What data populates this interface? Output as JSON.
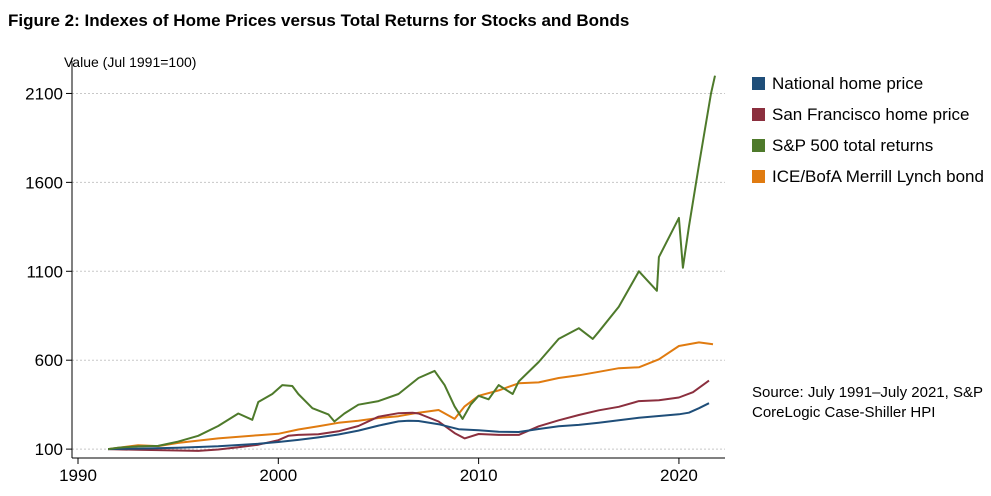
{
  "title": "Figure 2: Indexes of Home Prices versus Total Returns for Stocks and Bonds",
  "source_note": "Source: July 1991–July 2021, S&P CoreLogic Case-Shiller HPI",
  "chart_data": {
    "type": "line",
    "ylabel": "Value (Jul 1991=100)",
    "xlabel": "",
    "xlim": [
      1989.7,
      2022.3
    ],
    "ylim": [
      50,
      2260
    ],
    "xticks": [
      1990,
      2000,
      2010,
      2020
    ],
    "yticks": [
      100,
      600,
      1100,
      1600,
      2100
    ],
    "ytick_labels": [
      "100",
      "600",
      "1100",
      "1600",
      "2100"
    ],
    "grid": true,
    "legend_position": "right",
    "series": [
      {
        "name": "National home price",
        "color": "#1f4e79",
        "points": [
          [
            1991.5,
            100
          ],
          [
            1993,
            103
          ],
          [
            1995,
            108
          ],
          [
            1997,
            116
          ],
          [
            1999,
            130
          ],
          [
            2000,
            140
          ],
          [
            2001,
            152
          ],
          [
            2002,
            166
          ],
          [
            2003,
            182
          ],
          [
            2004,
            204
          ],
          [
            2005,
            232
          ],
          [
            2006,
            256
          ],
          [
            2006.5,
            260
          ],
          [
            2007,
            258
          ],
          [
            2008,
            240
          ],
          [
            2009,
            212
          ],
          [
            2010,
            206
          ],
          [
            2011,
            198
          ],
          [
            2012,
            196
          ],
          [
            2013,
            213
          ],
          [
            2014,
            228
          ],
          [
            2015,
            236
          ],
          [
            2016,
            248
          ],
          [
            2017,
            262
          ],
          [
            2018,
            276
          ],
          [
            2019,
            286
          ],
          [
            2020,
            296
          ],
          [
            2020.5,
            305
          ],
          [
            2021,
            330
          ],
          [
            2021.5,
            358
          ]
        ]
      },
      {
        "name": "San Francisco home price",
        "color": "#8b2f3e",
        "points": [
          [
            1991.5,
            100
          ],
          [
            1993,
            96
          ],
          [
            1995,
            92
          ],
          [
            1996,
            90
          ],
          [
            1997,
            98
          ],
          [
            1998,
            110
          ],
          [
            1999,
            125
          ],
          [
            2000,
            150
          ],
          [
            2000.5,
            175
          ],
          [
            2001,
            180
          ],
          [
            2002,
            183
          ],
          [
            2003,
            200
          ],
          [
            2004,
            230
          ],
          [
            2005,
            282
          ],
          [
            2006,
            302
          ],
          [
            2006.7,
            305
          ],
          [
            2007,
            300
          ],
          [
            2008,
            255
          ],
          [
            2008.8,
            190
          ],
          [
            2009.3,
            160
          ],
          [
            2010,
            185
          ],
          [
            2011,
            180
          ],
          [
            2012,
            180
          ],
          [
            2013,
            228
          ],
          [
            2014,
            262
          ],
          [
            2015,
            292
          ],
          [
            2016,
            318
          ],
          [
            2017,
            338
          ],
          [
            2018,
            370
          ],
          [
            2019,
            375
          ],
          [
            2020,
            390
          ],
          [
            2020.7,
            420
          ],
          [
            2021.5,
            485
          ]
        ]
      },
      {
        "name": "S&P 500 total returns",
        "color": "#4e7a2b",
        "points": [
          [
            1991.5,
            100
          ],
          [
            1992,
            108
          ],
          [
            1993,
            115
          ],
          [
            1994,
            118
          ],
          [
            1995,
            142
          ],
          [
            1996,
            175
          ],
          [
            1997,
            230
          ],
          [
            1998,
            300
          ],
          [
            1998.7,
            265
          ],
          [
            1999,
            365
          ],
          [
            1999.7,
            410
          ],
          [
            2000.2,
            460
          ],
          [
            2000.7,
            455
          ],
          [
            2001,
            410
          ],
          [
            2001.7,
            330
          ],
          [
            2002.5,
            295
          ],
          [
            2002.8,
            255
          ],
          [
            2003.3,
            300
          ],
          [
            2004,
            350
          ],
          [
            2005,
            370
          ],
          [
            2006,
            410
          ],
          [
            2007,
            500
          ],
          [
            2007.8,
            540
          ],
          [
            2008.3,
            460
          ],
          [
            2008.8,
            340
          ],
          [
            2009.2,
            270
          ],
          [
            2009.6,
            350
          ],
          [
            2010,
            400
          ],
          [
            2010.5,
            380
          ],
          [
            2011,
            460
          ],
          [
            2011.7,
            410
          ],
          [
            2012,
            480
          ],
          [
            2013,
            590
          ],
          [
            2014,
            720
          ],
          [
            2015,
            780
          ],
          [
            2015.7,
            720
          ],
          [
            2016,
            760
          ],
          [
            2017,
            900
          ],
          [
            2018,
            1100
          ],
          [
            2018.9,
            990
          ],
          [
            2019,
            1180
          ],
          [
            2020,
            1400
          ],
          [
            2020.2,
            1120
          ],
          [
            2020.5,
            1350
          ],
          [
            2021,
            1700
          ],
          [
            2021.3,
            1900
          ],
          [
            2021.6,
            2100
          ],
          [
            2021.8,
            2200
          ]
        ]
      },
      {
        "name": "ICE/BofA Merrill Lynch bond",
        "color": "#e07b10",
        "points": [
          [
            1991.5,
            100
          ],
          [
            1993,
            122
          ],
          [
            1994,
            117
          ],
          [
            1995,
            135
          ],
          [
            1997,
            160
          ],
          [
            1999,
            178
          ],
          [
            2000,
            186
          ],
          [
            2001,
            210
          ],
          [
            2002,
            228
          ],
          [
            2003,
            248
          ],
          [
            2004,
            260
          ],
          [
            2005,
            275
          ],
          [
            2006,
            285
          ],
          [
            2007,
            305
          ],
          [
            2008,
            320
          ],
          [
            2008.8,
            270
          ],
          [
            2009.3,
            340
          ],
          [
            2010,
            400
          ],
          [
            2011,
            430
          ],
          [
            2012,
            470
          ],
          [
            2013,
            475
          ],
          [
            2014,
            500
          ],
          [
            2015,
            515
          ],
          [
            2016,
            535
          ],
          [
            2017,
            555
          ],
          [
            2018,
            560
          ],
          [
            2019,
            605
          ],
          [
            2020,
            680
          ],
          [
            2021,
            700
          ],
          [
            2021.7,
            690
          ]
        ]
      }
    ]
  }
}
